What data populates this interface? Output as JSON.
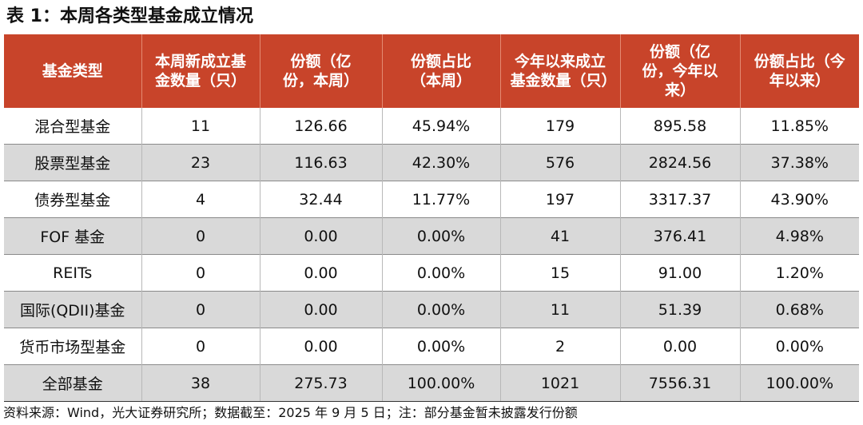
{
  "title": "表 1：本周各类型基金成立情况",
  "table": {
    "headers": [
      "基金类型",
      "本周新成立基金数量（只）",
      "份额（亿份，本周）",
      "份额占比（本周）",
      "今年以来成立基金数量（只）",
      "份额（亿份，今年以来）",
      "份额占比（今年以来）"
    ],
    "rows": [
      [
        "混合型基金",
        "11",
        "126.66",
        "45.94%",
        "179",
        "895.58",
        "11.85%"
      ],
      [
        "股票型基金",
        "23",
        "116.63",
        "42.30%",
        "576",
        "2824.56",
        "37.38%"
      ],
      [
        "债券型基金",
        "4",
        "32.44",
        "11.77%",
        "197",
        "3317.37",
        "43.90%"
      ],
      [
        "FOF 基金",
        "0",
        "0.00",
        "0.00%",
        "41",
        "376.41",
        "4.98%"
      ],
      [
        "REITs",
        "0",
        "0.00",
        "0.00%",
        "15",
        "91.00",
        "1.20%"
      ],
      [
        "国际(QDII)基金",
        "0",
        "0.00",
        "0.00%",
        "11",
        "51.39",
        "0.68%"
      ],
      [
        "货币市场型基金",
        "0",
        "0.00",
        "0.00%",
        "2",
        "0.00",
        "0.00%"
      ],
      [
        "全部基金",
        "38",
        "275.73",
        "100.00%",
        "1021",
        "7556.31",
        "100.00%"
      ]
    ]
  },
  "footnote": "资料来源：Wind，光大证券研究所；数据截至：2025 年 9 月 5 日；注：部分基金暂未披露发行份额",
  "colors": {
    "header_bg": "#c8442a",
    "header_text": "#ffffff",
    "stripe_bg": "#d9d9d9"
  }
}
